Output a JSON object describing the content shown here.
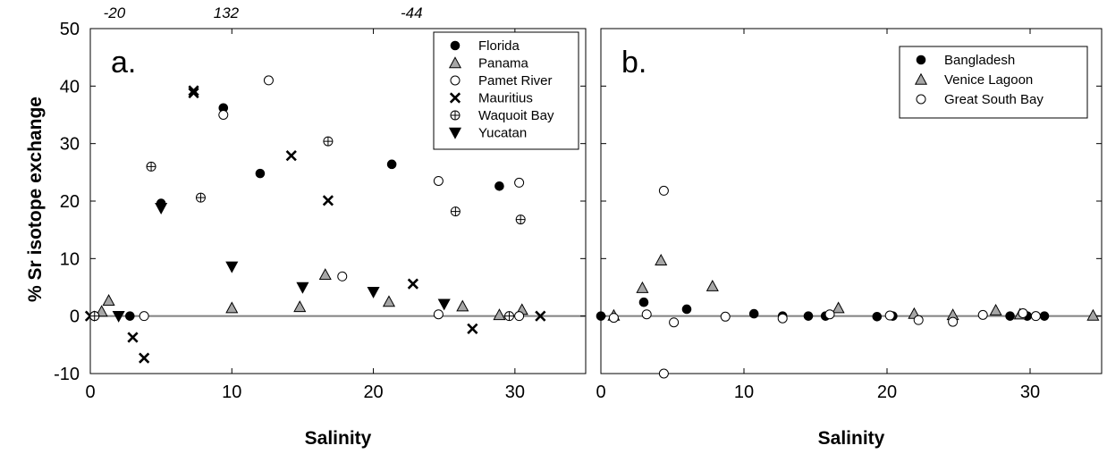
{
  "ylabel": "% Sr isotope exchange",
  "chart_data": [
    {
      "type": "scatter",
      "panel_label": "a.",
      "xlabel": "Salinity",
      "xlim": [
        0,
        35
      ],
      "ylim": [
        -10,
        50
      ],
      "xticks": [
        0,
        10,
        20,
        30
      ],
      "yticks": [
        -10,
        0,
        10,
        20,
        30,
        40,
        50
      ],
      "zero_line": true,
      "legend_position": "top-right",
      "offscale_labels": [
        {
          "x": 1.7,
          "text": "-20"
        },
        {
          "x": 9.6,
          "text": "132"
        },
        {
          "x": 22.7,
          "text": "-44"
        }
      ],
      "series": [
        {
          "name": "Florida",
          "marker": "filled-circle",
          "points": [
            [
              2.8,
              0
            ],
            [
              5.0,
              19.6
            ],
            [
              9.4,
              36.2
            ],
            [
              12.0,
              24.8
            ],
            [
              21.3,
              26.4
            ],
            [
              28.9,
              22.6
            ]
          ]
        },
        {
          "name": "Panama",
          "marker": "gray-triangle",
          "points": [
            [
              0.8,
              0.8
            ],
            [
              1.3,
              2.7
            ],
            [
              10.0,
              1.4
            ],
            [
              14.8,
              1.6
            ],
            [
              16.6,
              7.2
            ],
            [
              21.1,
              2.5
            ],
            [
              26.3,
              1.7
            ],
            [
              28.9,
              0.2
            ],
            [
              30.5,
              1.1
            ]
          ]
        },
        {
          "name": "Pamet River",
          "marker": "open-circle",
          "points": [
            [
              0.3,
              0
            ],
            [
              3.8,
              0
            ],
            [
              9.4,
              35.0
            ],
            [
              12.6,
              41.0
            ],
            [
              17.8,
              6.9
            ],
            [
              24.6,
              0.3
            ],
            [
              24.6,
              23.5
            ],
            [
              30.3,
              0
            ],
            [
              30.3,
              23.2
            ]
          ]
        },
        {
          "name": "Mauritius",
          "marker": "x",
          "points": [
            [
              0,
              0
            ],
            [
              3.0,
              -3.7
            ],
            [
              3.8,
              -7.3
            ],
            [
              7.3,
              38.8
            ],
            [
              7.3,
              39.2
            ],
            [
              14.2,
              27.9
            ],
            [
              16.8,
              20.1
            ],
            [
              22.8,
              5.6
            ],
            [
              27.0,
              -2.2
            ],
            [
              31.8,
              0
            ]
          ]
        },
        {
          "name": "Waquoit Bay",
          "marker": "crossed-circle",
          "points": [
            [
              0.3,
              0
            ],
            [
              4.3,
              26.0
            ],
            [
              7.8,
              20.6
            ],
            [
              16.8,
              30.4
            ],
            [
              25.8,
              18.2
            ],
            [
              29.6,
              0
            ],
            [
              30.4,
              16.8
            ]
          ]
        },
        {
          "name": "Yucatan",
          "marker": "down-triangle",
          "points": [
            [
              2.0,
              0
            ],
            [
              5.0,
              18.8
            ],
            [
              10.0,
              8.6
            ],
            [
              15.0,
              5.0
            ],
            [
              20.0,
              4.2
            ],
            [
              25.0,
              2.1
            ]
          ]
        }
      ]
    },
    {
      "type": "scatter",
      "panel_label": "b.",
      "xlabel": "Salinity",
      "xlim": [
        0,
        35
      ],
      "ylim": [
        -10,
        50
      ],
      "xticks": [
        0,
        10,
        20,
        30
      ],
      "yticks": [
        -10,
        0,
        10,
        20,
        30,
        40,
        50
      ],
      "zero_line": true,
      "legend_position": "top-right",
      "series": [
        {
          "name": "Bangladesh",
          "marker": "filled-circle",
          "points": [
            [
              0,
              0
            ],
            [
              3.0,
              2.4
            ],
            [
              6.0,
              1.2
            ],
            [
              10.7,
              0.4
            ],
            [
              12.7,
              0
            ],
            [
              14.5,
              0
            ],
            [
              15.7,
              0
            ],
            [
              19.3,
              -0.1
            ],
            [
              20.4,
              0
            ],
            [
              28.6,
              0
            ],
            [
              29.8,
              0
            ],
            [
              30.4,
              0
            ],
            [
              31.0,
              0
            ]
          ]
        },
        {
          "name": "Venice Lagoon",
          "marker": "gray-triangle",
          "points": [
            [
              0.9,
              0.1
            ],
            [
              2.9,
              4.9
            ],
            [
              4.2,
              9.7
            ],
            [
              7.8,
              5.2
            ],
            [
              16.6,
              1.4
            ],
            [
              21.9,
              0.4
            ],
            [
              24.6,
              0.2
            ],
            [
              27.6,
              1.0
            ],
            [
              29.3,
              0.3
            ],
            [
              34.4,
              0.1
            ]
          ]
        },
        {
          "name": "Great South Bay",
          "marker": "open-circle",
          "points": [
            [
              0.9,
              -0.3
            ],
            [
              3.2,
              0.3
            ],
            [
              4.4,
              21.8
            ],
            [
              4.4,
              -10.0
            ],
            [
              5.1,
              -1.1
            ],
            [
              8.7,
              -0.1
            ],
            [
              12.7,
              -0.4
            ],
            [
              16.0,
              0.3
            ],
            [
              20.2,
              0.1
            ],
            [
              22.2,
              -0.7
            ],
            [
              24.6,
              -1.0
            ],
            [
              26.7,
              0.2
            ],
            [
              29.5,
              0.5
            ],
            [
              30.4,
              0
            ]
          ]
        }
      ]
    }
  ]
}
